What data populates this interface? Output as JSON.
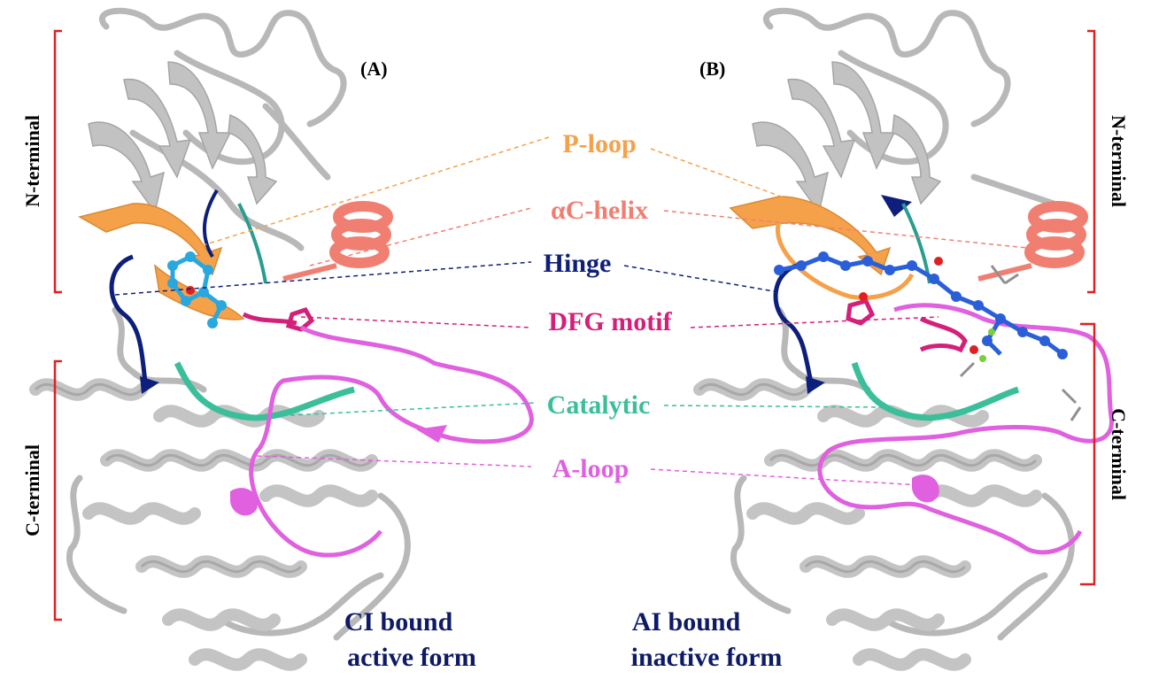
{
  "panels": {
    "left": {
      "tag": "(A)",
      "caption_line1": "CI bound",
      "caption_line2": "active form"
    },
    "right": {
      "tag": "(B)",
      "caption_line1": "AI bound",
      "caption_line2": "inactive form"
    }
  },
  "domains": {
    "n_terminal": "N-terminal",
    "c_terminal": "C-terminal"
  },
  "motifs": {
    "p_loop": "P-loop",
    "ac_helix": "αC-helix",
    "hinge": "Hinge",
    "dfg": "DFG motif",
    "catalytic": "Catalytic",
    "a_loop": "A-loop"
  },
  "colors": {
    "backbone": "#b8b8b8",
    "p_loop": "#f5a14a",
    "ac_helix": "#f07f72",
    "hinge": "#0d1f7a",
    "dfg": "#d4207a",
    "catalytic": "#3bbf9a",
    "a_loop": "#e060e0",
    "ligand": "#2b5fd9",
    "bracket": "#e02020",
    "caption": "#0d1a66"
  }
}
